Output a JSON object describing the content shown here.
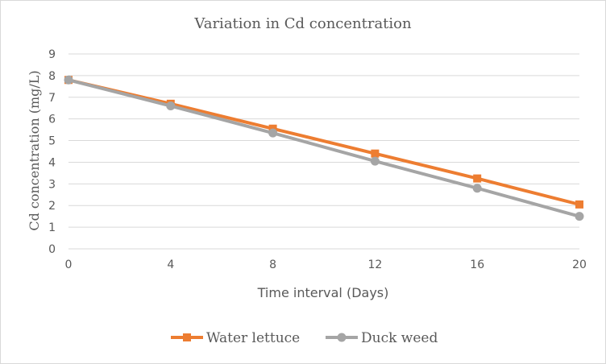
{
  "chart_data": {
    "type": "line",
    "title": "Variation in Cd concentration",
    "xlabel": "Time interval (Days)",
    "ylabel": "Cd concentration (mg/L)",
    "x": [
      0,
      4,
      8,
      12,
      16,
      20
    ],
    "xticks": [
      "0",
      "4",
      "8",
      "12",
      "16",
      "20"
    ],
    "xlim": [
      0,
      20
    ],
    "ylim": [
      0,
      9
    ],
    "yticks": [
      "0",
      "1",
      "2",
      "3",
      "4",
      "5",
      "6",
      "7",
      "8",
      "9"
    ],
    "grid": true,
    "legend_position": "bottom",
    "series": [
      {
        "name": "Water lettuce",
        "color": "#ED7D31",
        "marker": "square",
        "values": [
          7.8,
          6.7,
          5.55,
          4.4,
          3.25,
          2.05
        ]
      },
      {
        "name": "Duck weed",
        "color": "#A5A5A5",
        "marker": "circle",
        "values": [
          7.8,
          6.6,
          5.35,
          4.05,
          2.8,
          1.5
        ]
      }
    ]
  }
}
